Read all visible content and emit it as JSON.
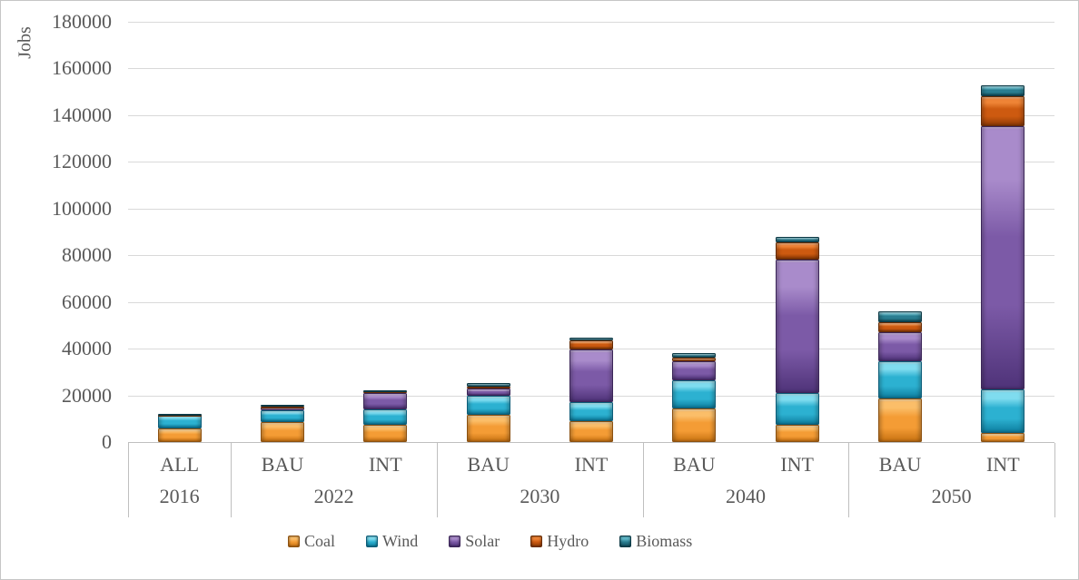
{
  "chart_data": {
    "type": "bar",
    "stacked": true,
    "title": "",
    "ylabel": "Jobs",
    "xlabel": "",
    "ylim": [
      0,
      180000
    ],
    "ytick_step": 20000,
    "yticks": [
      0,
      20000,
      40000,
      60000,
      80000,
      100000,
      120000,
      140000,
      160000,
      180000
    ],
    "grid": true,
    "legend_position": "bottom",
    "series_names": [
      "Coal",
      "Wind",
      "Solar",
      "Hydro",
      "Biomass"
    ],
    "series_colors": {
      "Coal": {
        "hi": "#FBBE69",
        "base": "#F49C35",
        "dark": "#C97312",
        "border": "#8C5110"
      },
      "Wind": {
        "hi": "#7FDCEF",
        "base": "#2CB1D1",
        "dark": "#0E7FA0",
        "border": "#0C5D79"
      },
      "Solar": {
        "hi": "#A98BCB",
        "base": "#7C5AA7",
        "dark": "#4F3379",
        "border": "#3B2558"
      },
      "Hydro": {
        "hi": "#EF8436",
        "base": "#CD5A10",
        "dark": "#8F3B05",
        "border": "#662B03"
      },
      "Biomass": {
        "hi": "#5FB7C8",
        "base": "#2A7E91",
        "dark": "#124E5E",
        "border": "#0C3945"
      }
    },
    "groups": [
      {
        "year": "2016",
        "bars": [
          {
            "scenario": "ALL",
            "values": [
              6000,
              5500,
              0,
              300,
              300
            ]
          }
        ]
      },
      {
        "year": "2022",
        "bars": [
          {
            "scenario": "BAU",
            "values": [
              8500,
              5200,
              900,
              500,
              900
            ]
          },
          {
            "scenario": "INT",
            "values": [
              7200,
              6800,
              7000,
              600,
              400
            ]
          }
        ]
      },
      {
        "year": "2030",
        "bars": [
          {
            "scenario": "BAU",
            "values": [
              11500,
              8200,
              3100,
              800,
              1700
            ]
          },
          {
            "scenario": "INT",
            "values": [
              9000,
              8300,
              22500,
              3800,
              1100
            ]
          }
        ]
      },
      {
        "year": "2040",
        "bars": [
          {
            "scenario": "BAU",
            "values": [
              14500,
              12000,
              8000,
              1700,
              1800
            ]
          },
          {
            "scenario": "INT",
            "values": [
              7200,
              13600,
              57500,
              7400,
              2000
            ]
          }
        ]
      },
      {
        "year": "2050",
        "bars": [
          {
            "scenario": "BAU",
            "values": [
              18500,
              16000,
              12500,
              4200,
              4600
            ]
          },
          {
            "scenario": "INT",
            "values": [
              3700,
              18700,
              112800,
              12800,
              4700
            ]
          }
        ]
      }
    ],
    "legend": [
      "Coal",
      "Wind",
      "Solar",
      "Hydro",
      "Biomass"
    ],
    "colors": {
      "text": "#595959",
      "gridline": "#D9D9D9",
      "axis_line": "#BFBFBF",
      "background": "#FFFFFF"
    }
  }
}
